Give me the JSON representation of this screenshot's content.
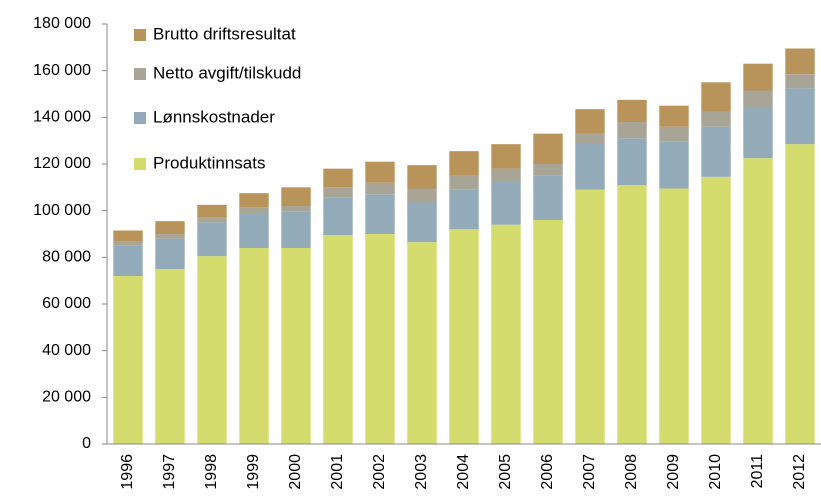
{
  "chart_data": {
    "type": "stacked_bar",
    "categories": [
      "1996",
      "1997",
      "1998",
      "1999",
      "2000",
      "2001",
      "2002",
      "2003",
      "2004",
      "2005",
      "2006",
      "2007",
      "2008",
      "2009",
      "2010",
      "2011",
      "2012"
    ],
    "series": [
      {
        "name": "Produktinnsats",
        "color": "#d4dc6e",
        "values": [
          72000,
          75000,
          80500,
          84000,
          84000,
          89500,
          90000,
          86500,
          92000,
          94000,
          96000,
          109000,
          111000,
          109500,
          114500,
          122500,
          128500
        ]
      },
      {
        "name": "Lønnskostnader",
        "color": "#93aab8",
        "values": [
          13000,
          13000,
          14500,
          15000,
          15500,
          16000,
          17000,
          17000,
          17000,
          18500,
          19000,
          20000,
          20000,
          20000,
          21500,
          21500,
          24000
        ]
      },
      {
        "name": "Netto avgift/tilskudd",
        "color": "#a8a596",
        "values": [
          2000,
          2000,
          2000,
          2500,
          2500,
          4500,
          5000,
          6000,
          6000,
          5500,
          5000,
          4000,
          7000,
          6500,
          6500,
          7500,
          6000
        ]
      },
      {
        "name": "Brutto driftsresultat",
        "color": "#b8935a",
        "values": [
          4500,
          5500,
          5500,
          6000,
          8000,
          8000,
          9000,
          10000,
          10500,
          10500,
          13000,
          10500,
          9500,
          9000,
          12500,
          11500,
          11000
        ]
      }
    ],
    "ylim": [
      0,
      180000
    ],
    "yticks": [
      0,
      {
        "value": 20000,
        "label": "20 000"
      },
      {
        "value": 40000,
        "label": "40 000"
      },
      {
        "value": 60000,
        "label": "60 000"
      },
      {
        "value": 80000,
        "label": "80 000"
      },
      {
        "value": 100000,
        "label": "100 000"
      },
      {
        "value": 120000,
        "label": "120 000"
      },
      {
        "value": 140000,
        "label": "140 000"
      },
      {
        "value": 160000,
        "label": "160 000"
      },
      {
        "value": 180000,
        "label": "180 000"
      }
    ],
    "legend": "top-left"
  }
}
